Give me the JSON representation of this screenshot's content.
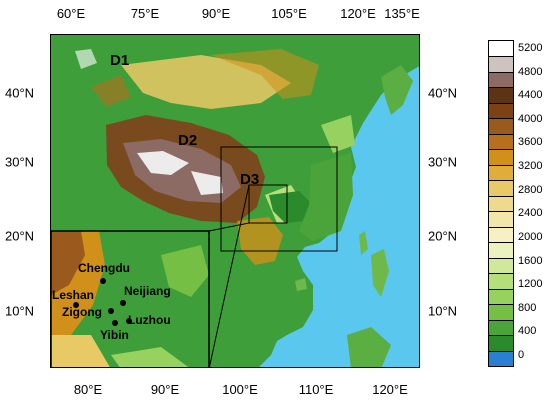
{
  "map": {
    "domains": {
      "d1": "D1",
      "d2": "D2",
      "d3": "D3"
    },
    "cities": {
      "chengdu": "Chengdu",
      "leshan": "Leshan",
      "neijiang": "Neijiang",
      "zigong": "Zigong",
      "luzhou": "Luzhou",
      "yibin": "Yibin"
    },
    "axes": {
      "top": [
        "60°E",
        "75°E",
        "90°E",
        "105°E",
        "120°E",
        "135°E"
      ],
      "bottom": [
        "80°E",
        "90°E",
        "100°E",
        "110°E",
        "120°E"
      ],
      "left": [
        "40°N",
        "30°N",
        "20°N",
        "10°N"
      ],
      "right": [
        "40°N",
        "30°N",
        "20°N",
        "10°N"
      ]
    }
  },
  "colorbar": {
    "labels": [
      "5200",
      "4800",
      "4400",
      "4000",
      "3600",
      "3200",
      "2800",
      "2400",
      "2000",
      "1600",
      "1200",
      "800",
      "400",
      "0"
    ],
    "colors": [
      "#ffffff",
      "#cfc3c0",
      "#8b6b64",
      "#5c3413",
      "#7b4216",
      "#9a5a1e",
      "#b86e1c",
      "#d1901a",
      "#e0ad3a",
      "#e9c866",
      "#efd98a",
      "#f3e6aa",
      "#f6f0c4",
      "#ebf2c0",
      "#cfe89a",
      "#b5df7a",
      "#97d160",
      "#74bf44",
      "#4aa43a",
      "#2b8a2b",
      "#2b7fd2"
    ]
  },
  "colors": {
    "ocean": "#5ac8ee",
    "lowland": "#3e9e3a",
    "plateau": "#7a4a1f",
    "highPeak": "#ececec"
  }
}
